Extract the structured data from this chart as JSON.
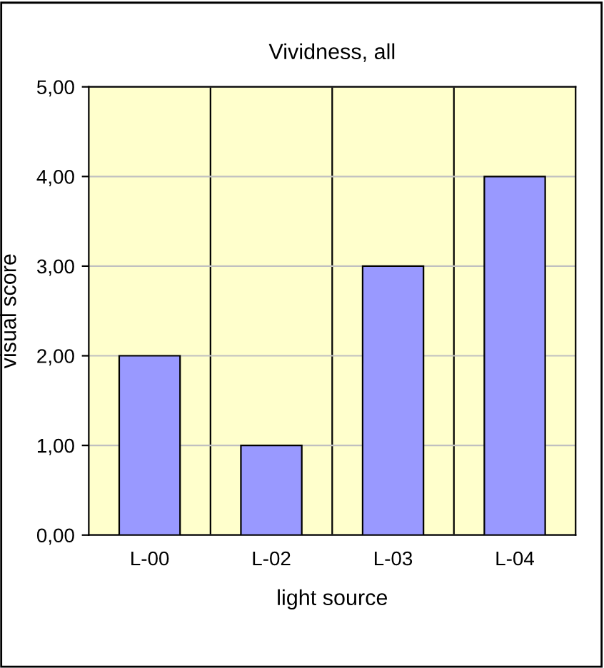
{
  "chart_data": {
    "type": "bar",
    "title": "Vividness, all",
    "xlabel": "light source",
    "ylabel": "visual score",
    "categories": [
      "L-00",
      "L-02",
      "L-03",
      "L-04"
    ],
    "values": [
      2,
      1,
      3,
      4
    ],
    "color": "#9999ff",
    "ylim": [
      0,
      5
    ],
    "yticks": [
      {
        "value": 0,
        "label": "0,00"
      },
      {
        "value": 1,
        "label": "1,00"
      },
      {
        "value": 2,
        "label": "2,00"
      },
      {
        "value": 3,
        "label": "3,00"
      },
      {
        "value": 4,
        "label": "4,00"
      },
      {
        "value": 5,
        "label": "5,00"
      }
    ],
    "grid": true,
    "legend": false
  }
}
